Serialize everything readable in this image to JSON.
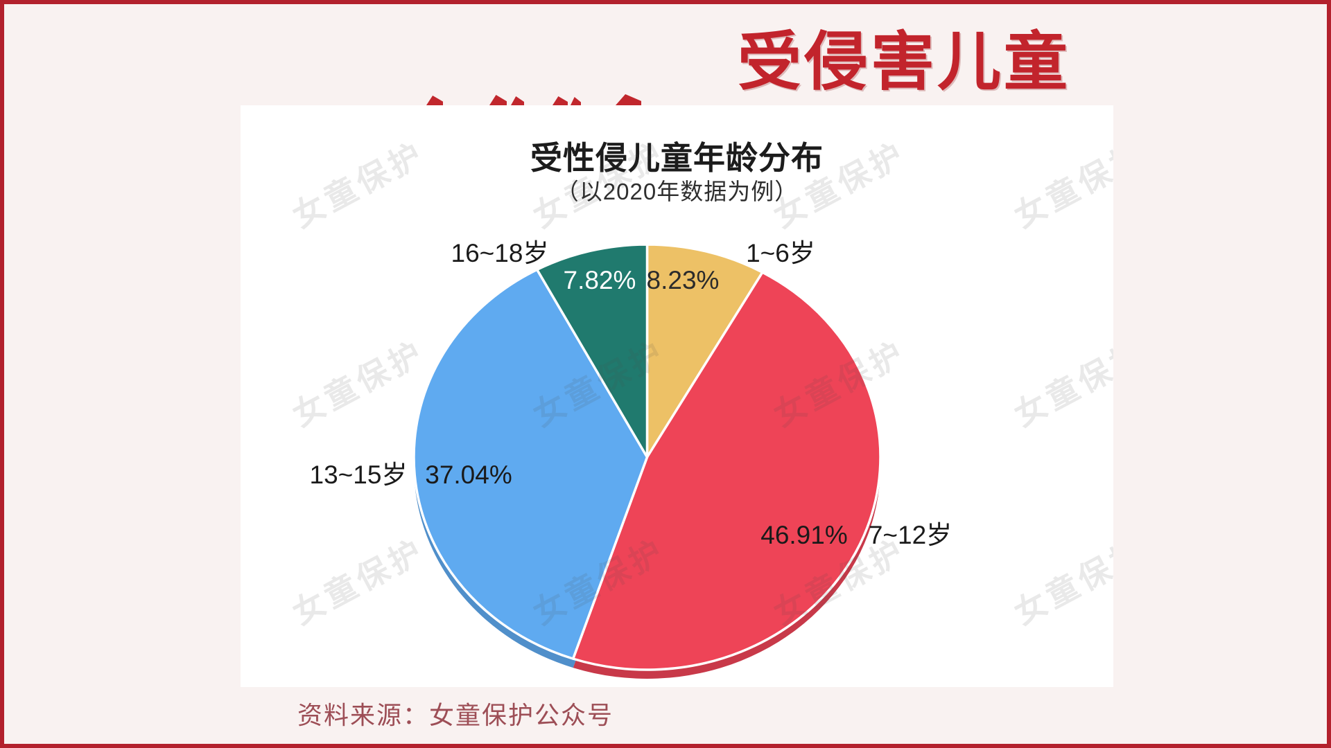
{
  "frame": {
    "border_color": "#b3212d",
    "background_color": "#f9f2f1"
  },
  "header": {
    "title": "受侵害儿童",
    "title_color": "#c2242c"
  },
  "watermark": {
    "text": "女童保护"
  },
  "source": {
    "text": "资料来源：女童保护公众号",
    "color": "#9d4e56"
  },
  "chart_data": {
    "type": "pie",
    "title": "受性侵儿童年龄分布",
    "subtitle": "（以2020年数据为例）",
    "unit": "percent",
    "direction": "clockwise",
    "start_angle_deg": 0,
    "series": [
      {
        "label": "1~6岁",
        "value": 8.23,
        "pct_label": "8.23%",
        "color": "#edc166",
        "pct_label_color": "#2b2b2b"
      },
      {
        "label": "7~12岁",
        "value": 46.91,
        "pct_label": "46.91%",
        "color": "#ee4457",
        "pct_label_color": "#1a1a1a"
      },
      {
        "label": "13~15岁",
        "value": 37.04,
        "pct_label": "37.04%",
        "color": "#5faaf0",
        "pct_label_color": "#1a1a1a"
      },
      {
        "label": "16~18岁",
        "value": 7.82,
        "pct_label": "7.82%",
        "color": "#207a6e",
        "pct_label_color": "#ffffff"
      }
    ]
  }
}
